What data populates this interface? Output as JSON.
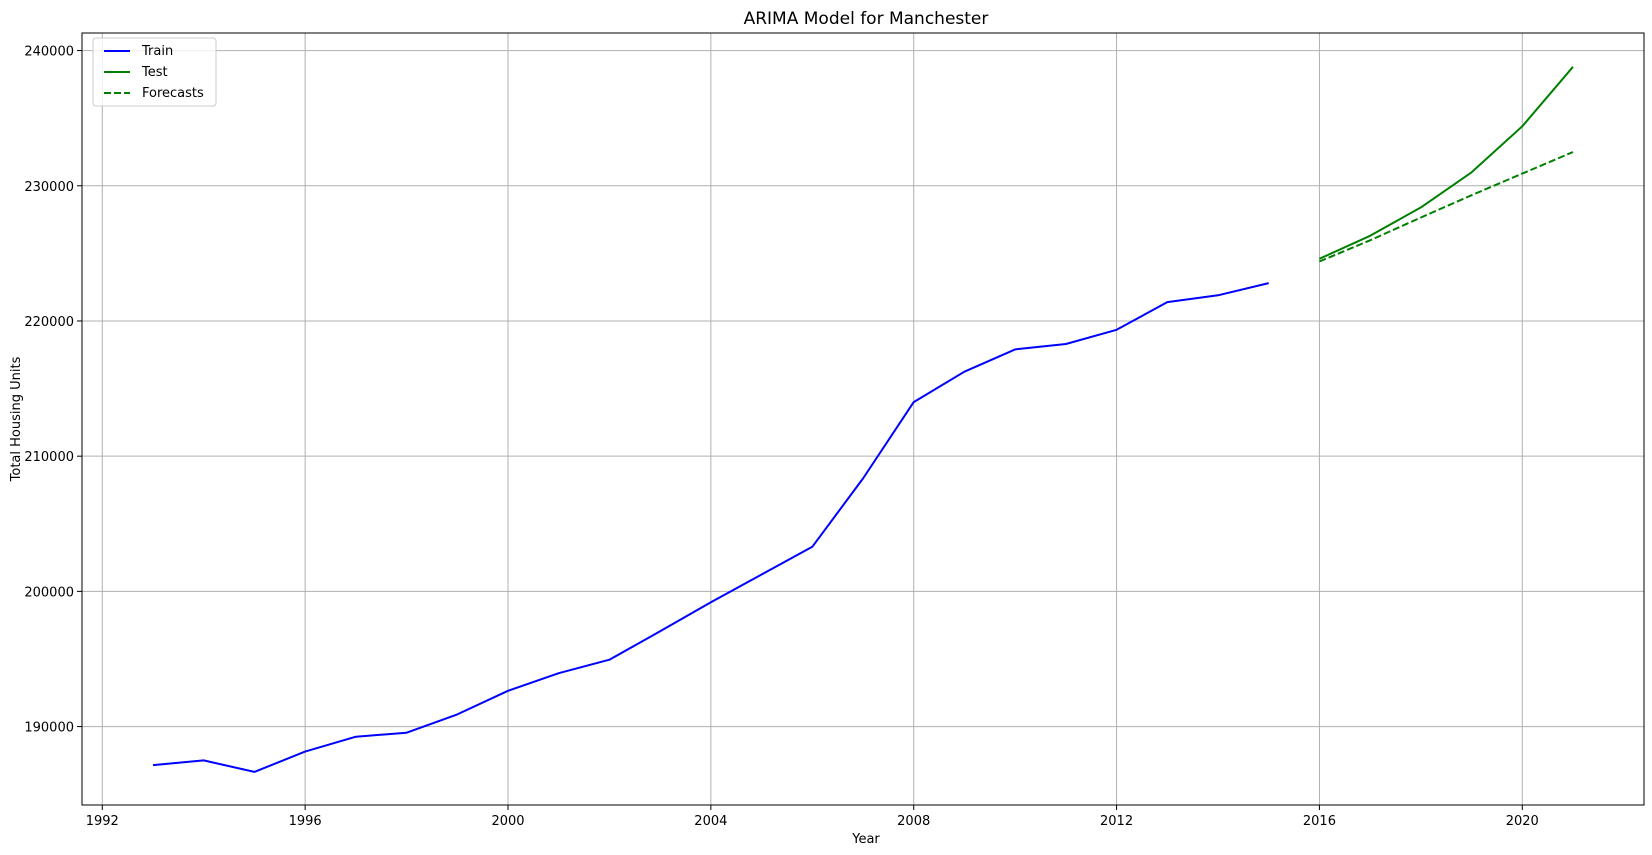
{
  "chart_data": {
    "type": "line",
    "title": "ARIMA Model for Manchester",
    "xlabel": "Year",
    "ylabel": "Total Housing Units",
    "xlim": [
      1991.6,
      2022.4
    ],
    "ylim": [
      184200,
      241300
    ],
    "xticks": [
      1992,
      1996,
      2000,
      2004,
      2008,
      2012,
      2016,
      2020
    ],
    "yticks": [
      190000,
      200000,
      210000,
      220000,
      230000,
      240000
    ],
    "grid": true,
    "legend_position": "top-left",
    "series": [
      {
        "name": "Train",
        "color": "#0000ff",
        "dash": "solid",
        "x": [
          1993,
          1994,
          1995,
          1996,
          1997,
          1998,
          1999,
          2000,
          2001,
          2002,
          2003,
          2004,
          2005,
          2006,
          2007,
          2008,
          2009,
          2010,
          2011,
          2012,
          2013,
          2014,
          2015
        ],
        "y": [
          187150,
          187500,
          186650,
          188150,
          189250,
          189550,
          190900,
          192650,
          193950,
          194950,
          197050,
          199200,
          201250,
          203300,
          208350,
          214000,
          216250,
          217900,
          218300,
          219350,
          221400,
          221900,
          222800
        ]
      },
      {
        "name": "Test",
        "color": "#008000",
        "dash": "solid",
        "x": [
          2016,
          2017,
          2018,
          2019,
          2020,
          2021
        ],
        "y": [
          224600,
          226300,
          228400,
          231000,
          234400,
          238800
        ]
      },
      {
        "name": "Forecasts",
        "color": "#008000",
        "dash": "dashed",
        "x": [
          2016,
          2017,
          2018,
          2019,
          2020,
          2021
        ],
        "y": [
          224400,
          225970,
          227650,
          229300,
          230900,
          232500
        ]
      }
    ]
  }
}
